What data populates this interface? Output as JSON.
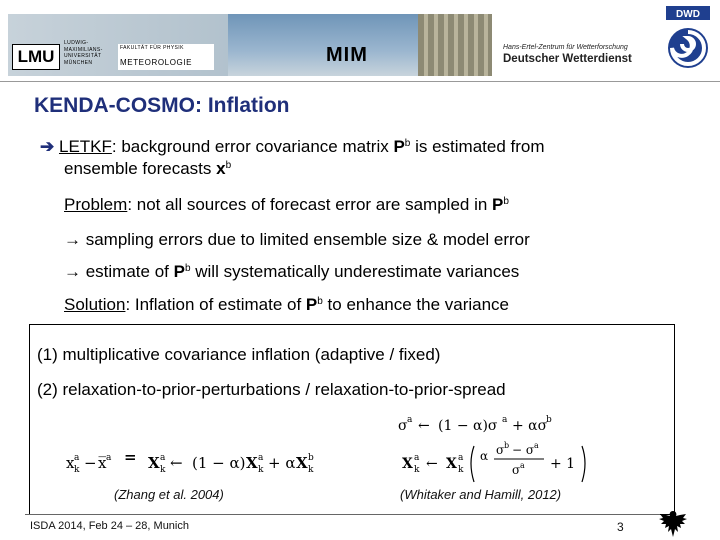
{
  "header": {
    "lmu_logo": "LMU",
    "lmu_name_lines": [
      "LUDWIG-",
      "MAXIMILIANS-",
      "UNIVERSITÄT",
      "MÜNCHEN"
    ],
    "faculty": "FAKULTÄT FÜR PHYSIK",
    "department": "METEOROLOGIE",
    "mim": "MIM",
    "dwd_center": "Hans-Ertel-Zentrum für Wetterforschung",
    "dwd_name": "Deutscher Wetterdienst",
    "dwd_logo_text": "DWD"
  },
  "slide": {
    "title": "KENDA-COSMO: Inflation",
    "bullet1": {
      "term": "LETKF",
      "text_a": ": background error covariance matrix ",
      "P": "P",
      "b": "b",
      "text_b": " is estimated from",
      "line2": "ensemble forecasts ",
      "x": "x"
    },
    "problem": {
      "term": "Problem",
      "text": ": not all sources of forecast error are sampled in "
    },
    "sampling": "→ sampling errors due to limited ensemble size & model error",
    "estimate_a": "→ estimate of ",
    "estimate_b": " will systematically underestimate variances",
    "solution": {
      "term": "Solution",
      "text_a": ": Inflation of estimate of ",
      "text_b": " to enhance the variance"
    },
    "method1": "(1) multiplicative covariance inflation (adaptive / fixed)",
    "method2": "(2) relaxation-to-prior-perturbations  / relaxation-to-prior-spread",
    "cite_left": "(Zhang et al. 2004)",
    "cite_right": "(Whitaker and Hamill, 2012)"
  },
  "footer": {
    "text": "ISDA 2014, Feb 24 – 28, Munich",
    "page": "3"
  }
}
